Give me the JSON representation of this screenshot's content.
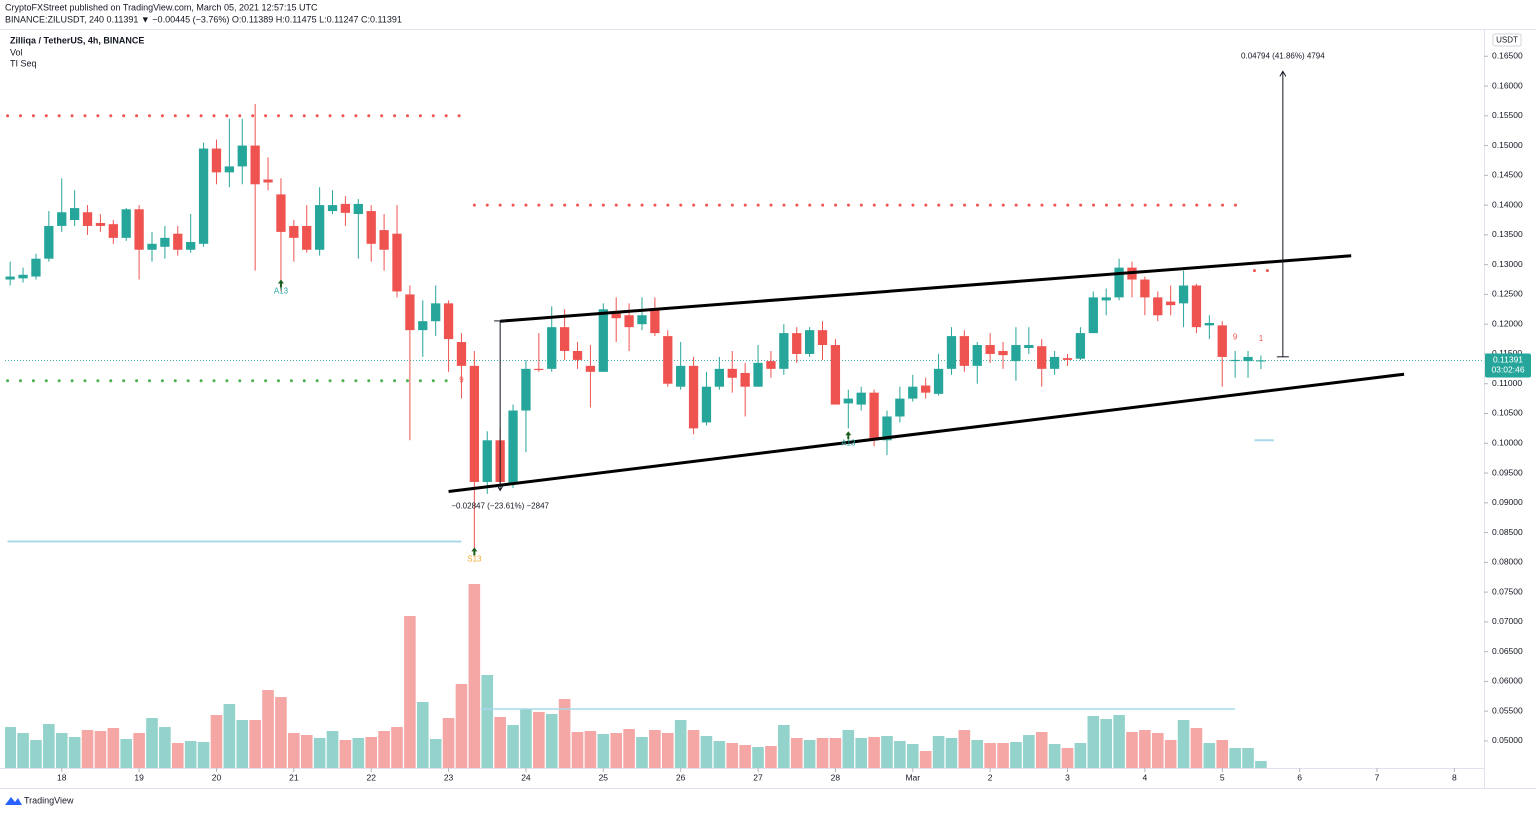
{
  "chart_data": {
    "type": "candlestick",
    "publisher_line": "CryptoFXStreet published on TradingView.com, March 05, 2021 12:57:15 UTC",
    "symbol_line": "BINANCE:ZILUSDT, 240  0.11391  ▼ −0.00445 (−3.76%)  O:0.11389  H:0.11475  L:0.11247  C:0.11391",
    "title": "Zilliqa / TetherUS, 4h, BINANCE",
    "indicators": [
      "Vol",
      "TI Seq"
    ],
    "currency": "USDT",
    "brand": "TradingView",
    "up_color": "#26a69a",
    "down_color": "#ef5350",
    "volume_up_color": "#94d3cc",
    "volume_down_color": "#f5a7a6",
    "grid": false,
    "xlim": [
      -0.4,
      114.3
    ],
    "xticks": [
      {
        "value": 4,
        "label": "18"
      },
      {
        "value": 10,
        "label": "19"
      },
      {
        "value": 16,
        "label": "20"
      },
      {
        "value": 22,
        "label": "21"
      },
      {
        "value": 28,
        "label": "22"
      },
      {
        "value": 34,
        "label": "23"
      },
      {
        "value": 40,
        "label": "24"
      },
      {
        "value": 46,
        "label": "25"
      },
      {
        "value": 52,
        "label": "26"
      },
      {
        "value": 58,
        "label": "27"
      },
      {
        "value": 64,
        "label": "28"
      },
      {
        "value": 70,
        "label": "Mar"
      },
      {
        "value": 76,
        "label": "2"
      },
      {
        "value": 82,
        "label": "3"
      },
      {
        "value": 88,
        "label": "4"
      },
      {
        "value": 94,
        "label": "5"
      },
      {
        "value": 100,
        "label": "6"
      },
      {
        "value": 106,
        "label": "7"
      },
      {
        "value": 112,
        "label": "8"
      }
    ],
    "ylim": [
      0.04546,
      0.16941
    ],
    "yticks": [
      {
        "value": 0.05,
        "label": "0.05000"
      },
      {
        "value": 0.055,
        "label": "0.05500"
      },
      {
        "value": 0.06,
        "label": "0.06000"
      },
      {
        "value": 0.065,
        "label": "0.06500"
      },
      {
        "value": 0.07,
        "label": "0.07000"
      },
      {
        "value": 0.075,
        "label": "0.07500"
      },
      {
        "value": 0.08,
        "label": "0.08000"
      },
      {
        "value": 0.085,
        "label": "0.08500"
      },
      {
        "value": 0.09,
        "label": "0.09000"
      },
      {
        "value": 0.095,
        "label": "0.09500"
      },
      {
        "value": 0.1,
        "label": "0.10000"
      },
      {
        "value": 0.105,
        "label": "0.10500"
      },
      {
        "value": 0.11,
        "label": "0.11000"
      },
      {
        "value": 0.115,
        "label": "0.11500"
      },
      {
        "value": 0.12,
        "label": "0.12000"
      },
      {
        "value": 0.125,
        "label": "0.12500"
      },
      {
        "value": 0.13,
        "label": "0.13000"
      },
      {
        "value": 0.135,
        "label": "0.13500"
      },
      {
        "value": 0.14,
        "label": "0.14000"
      },
      {
        "value": 0.145,
        "label": "0.14500"
      },
      {
        "value": 0.15,
        "label": "0.15000"
      },
      {
        "value": 0.155,
        "label": "0.15500"
      },
      {
        "value": 0.16,
        "label": "0.16000"
      },
      {
        "value": 0.165,
        "label": "0.16500"
      }
    ],
    "ohlc": [
      [
        0.1275,
        0.1305,
        0.1265,
        0.128
      ],
      [
        0.1277,
        0.1295,
        0.127,
        0.1283
      ],
      [
        0.128,
        0.1318,
        0.1275,
        0.131
      ],
      [
        0.131,
        0.139,
        0.1305,
        0.1365
      ],
      [
        0.1365,
        0.1445,
        0.1355,
        0.1388
      ],
      [
        0.1375,
        0.1425,
        0.1365,
        0.1395
      ],
      [
        0.1388,
        0.14,
        0.135,
        0.1365
      ],
      [
        0.137,
        0.1385,
        0.1355,
        0.1365
      ],
      [
        0.1368,
        0.1375,
        0.1335,
        0.1345
      ],
      [
        0.1345,
        0.1395,
        0.134,
        0.1393
      ],
      [
        0.1393,
        0.14,
        0.1275,
        0.1325
      ],
      [
        0.1325,
        0.1355,
        0.1305,
        0.1335
      ],
      [
        0.133,
        0.1365,
        0.131,
        0.1345
      ],
      [
        0.1352,
        0.1365,
        0.1315,
        0.1325
      ],
      [
        0.1325,
        0.1385,
        0.132,
        0.1338
      ],
      [
        0.1335,
        0.1505,
        0.133,
        0.1495
      ],
      [
        0.1495,
        0.151,
        0.1435,
        0.1455
      ],
      [
        0.1455,
        0.1545,
        0.143,
        0.1465
      ],
      [
        0.1465,
        0.1545,
        0.1435,
        0.15
      ],
      [
        0.15,
        0.157,
        0.129,
        0.1435
      ],
      [
        0.1443,
        0.148,
        0.1425,
        0.1438
      ],
      [
        0.1418,
        0.1445,
        0.1255,
        0.1355
      ],
      [
        0.1365,
        0.1375,
        0.1305,
        0.1345
      ],
      [
        0.1365,
        0.14,
        0.132,
        0.1325
      ],
      [
        0.1325,
        0.143,
        0.1315,
        0.14
      ],
      [
        0.139,
        0.1425,
        0.1385,
        0.14
      ],
      [
        0.1402,
        0.1415,
        0.1365,
        0.1387
      ],
      [
        0.1385,
        0.141,
        0.131,
        0.1402
      ],
      [
        0.139,
        0.14,
        0.1305,
        0.1335
      ],
      [
        0.1358,
        0.1385,
        0.129,
        0.1325
      ],
      [
        0.1352,
        0.14,
        0.1245,
        0.1255
      ],
      [
        0.125,
        0.1265,
        0.1005,
        0.119
      ],
      [
        0.119,
        0.124,
        0.1145,
        0.1205
      ],
      [
        0.1205,
        0.1265,
        0.118,
        0.1235
      ],
      [
        0.1235,
        0.124,
        0.112,
        0.1175
      ],
      [
        0.117,
        0.1185,
        0.1075,
        0.113
      ],
      [
        0.113,
        0.1155,
        0.0815,
        0.0935
      ],
      [
        0.0935,
        0.102,
        0.0915,
        0.1005
      ],
      [
        0.1005,
        0.1025,
        0.093,
        0.0935
      ],
      [
        0.0932,
        0.1065,
        0.0925,
        0.1055
      ],
      [
        0.1055,
        0.114,
        0.0985,
        0.1125
      ],
      [
        0.1125,
        0.1185,
        0.112,
        0.1123
      ],
      [
        0.1125,
        0.123,
        0.112,
        0.1195
      ],
      [
        0.1195,
        0.1225,
        0.114,
        0.1155
      ],
      [
        0.1155,
        0.117,
        0.1125,
        0.114
      ],
      [
        0.113,
        0.1165,
        0.106,
        0.112
      ],
      [
        0.112,
        0.1235,
        0.112,
        0.1225
      ],
      [
        0.1218,
        0.1245,
        0.117,
        0.121
      ],
      [
        0.1215,
        0.1235,
        0.1155,
        0.1195
      ],
      [
        0.12,
        0.1245,
        0.119,
        0.1215
      ],
      [
        0.1225,
        0.1245,
        0.118,
        0.1185
      ],
      [
        0.118,
        0.119,
        0.1095,
        0.11
      ],
      [
        0.1095,
        0.117,
        0.109,
        0.113
      ],
      [
        0.113,
        0.1145,
        0.1015,
        0.1025
      ],
      [
        0.1035,
        0.112,
        0.103,
        0.1095
      ],
      [
        0.1095,
        0.1145,
        0.109,
        0.1125
      ],
      [
        0.1125,
        0.1155,
        0.1085,
        0.111
      ],
      [
        0.1118,
        0.1135,
        0.1045,
        0.1095
      ],
      [
        0.1095,
        0.1165,
        0.1095,
        0.1135
      ],
      [
        0.1138,
        0.1155,
        0.111,
        0.1125
      ],
      [
        0.1125,
        0.12,
        0.1115,
        0.1185
      ],
      [
        0.1185,
        0.1195,
        0.1135,
        0.115
      ],
      [
        0.115,
        0.1195,
        0.1145,
        0.119
      ],
      [
        0.119,
        0.1205,
        0.114,
        0.1165
      ],
      [
        0.1165,
        0.1175,
        0.1065,
        0.1065
      ],
      [
        0.1067,
        0.109,
        0.1025,
        0.1075
      ],
      [
        0.1065,
        0.1095,
        0.1055,
        0.1085
      ],
      [
        0.1085,
        0.109,
        0.0995,
        0.1005
      ],
      [
        0.1005,
        0.1055,
        0.098,
        0.1045
      ],
      [
        0.1045,
        0.1095,
        0.1035,
        0.1075
      ],
      [
        0.1075,
        0.1115,
        0.107,
        0.1095
      ],
      [
        0.1097,
        0.111,
        0.1075,
        0.1085
      ],
      [
        0.1083,
        0.115,
        0.108,
        0.1125
      ],
      [
        0.1125,
        0.1195,
        0.1115,
        0.118
      ],
      [
        0.118,
        0.119,
        0.112,
        0.113
      ],
      [
        0.113,
        0.117,
        0.11,
        0.1165
      ],
      [
        0.1165,
        0.1185,
        0.1135,
        0.115
      ],
      [
        0.1155,
        0.117,
        0.1125,
        0.1148
      ],
      [
        0.1138,
        0.1195,
        0.1105,
        0.1165
      ],
      [
        0.116,
        0.1195,
        0.115,
        0.1165
      ],
      [
        0.1163,
        0.1175,
        0.1095,
        0.1125
      ],
      [
        0.1125,
        0.1155,
        0.1115,
        0.1145
      ],
      [
        0.1143,
        0.115,
        0.113,
        0.114
      ],
      [
        0.1142,
        0.1195,
        0.114,
        0.1185
      ],
      [
        0.1185,
        0.1255,
        0.1185,
        0.1245
      ],
      [
        0.124,
        0.126,
        0.1215,
        0.1245
      ],
      [
        0.1245,
        0.131,
        0.124,
        0.1295
      ],
      [
        0.1295,
        0.1305,
        0.1245,
        0.1275
      ],
      [
        0.1275,
        0.128,
        0.1215,
        0.1245
      ],
      [
        0.1245,
        0.1255,
        0.1205,
        0.1215
      ],
      [
        0.1238,
        0.1265,
        0.1215,
        0.1232
      ],
      [
        0.1235,
        0.129,
        0.1195,
        0.1265
      ],
      [
        0.1265,
        0.1268,
        0.1185,
        0.1195
      ],
      [
        0.1198,
        0.1215,
        0.1175,
        0.1202
      ],
      [
        0.1198,
        0.1205,
        0.1095,
        0.1145
      ],
      [
        0.1138,
        0.1155,
        0.111,
        0.114
      ],
      [
        0.1138,
        0.1155,
        0.111,
        0.1145
      ],
      [
        0.11389,
        0.11475,
        0.11247,
        0.11391
      ]
    ],
    "vlim": [
      0,
      250
    ],
    "volume": [
      41,
      35,
      28,
      44,
      35,
      31,
      38,
      37,
      40,
      29,
      35,
      50,
      41,
      25,
      27,
      26,
      53,
      64,
      48,
      48,
      78,
      71,
      35,
      33,
      30,
      37,
      28,
      30,
      31,
      37,
      41,
      152,
      66,
      29,
      50,
      84,
      184,
      93,
      51,
      43,
      59,
      56,
      54,
      69,
      36,
      37,
      34,
      35,
      39,
      31,
      38,
      35,
      48,
      38,
      32,
      27,
      25,
      23,
      21,
      22,
      43,
      30,
      28,
      30,
      30,
      38,
      30,
      31,
      32,
      27,
      24,
      17,
      32,
      30,
      38,
      28,
      25,
      25,
      26,
      33,
      36,
      24,
      20,
      25,
      52,
      49,
      53,
      36,
      38,
      35,
      28,
      48,
      40,
      25,
      28,
      20,
      20,
      7
    ],
    "volume_level": {
      "value": 59,
      "from": 36.5,
      "to": 95,
      "color": "#a8d8ea"
    },
    "levels": [
      {
        "value": 0.155,
        "from": -0.2,
        "to": 35,
        "color": "#ef5350",
        "style": "dotted"
      },
      {
        "value": 0.14,
        "from": 36,
        "to": 95.5,
        "color": "#ef5350",
        "style": "dotted"
      },
      {
        "value": 0.1105,
        "from": -0.2,
        "to": 34,
        "color": "#4caf50",
        "style": "dotted"
      },
      {
        "value": 0.0835,
        "from": -0.2,
        "to": 35,
        "color": "#a8d8ea",
        "style": "solid"
      },
      {
        "value": 0.129,
        "from": 96.5,
        "to": 98,
        "color": "#ef5350",
        "style": "dotted"
      },
      {
        "value": 0.1005,
        "from": 96.5,
        "to": 98,
        "color": "#a8d8ea",
        "style": "solid"
      }
    ],
    "trendlines": [
      {
        "x": [
          38,
          104
        ],
        "y": [
          0.1205,
          0.1315
        ]
      },
      {
        "x": [
          34,
          108.1
        ],
        "y": [
          0.0919,
          0.1116
        ]
      }
    ],
    "measures": [
      {
        "x": 38,
        "y": [
          0.12055,
          0.09208
        ],
        "label": "−0.02847 (−23.61%) −2847"
      },
      {
        "x": 98.7,
        "y": [
          0.11452,
          0.16246
        ],
        "label": "0.04794 (41.86%) 4794"
      }
    ],
    "signals": [
      {
        "x": 21,
        "y": 0.1255,
        "label": "A13",
        "color": "#26a69a"
      },
      {
        "x": 65,
        "y": 0.1,
        "label": "A13",
        "color": "#26a69a"
      },
      {
        "x": 36,
        "y": 0.0805,
        "label": "S13",
        "color": "#f0a830"
      },
      {
        "x": 35,
        "y": 0.1106,
        "label": "9",
        "color": "#ef5350"
      },
      {
        "x": 95,
        "y": 0.1178,
        "label": "9",
        "color": "#ef5350"
      },
      {
        "x": 97,
        "y": 0.1175,
        "label": "1",
        "color": "#ef5350"
      }
    ],
    "last_price": {
      "value": 0.11391,
      "label": "0.11391"
    },
    "countdown": "03:02:46"
  }
}
